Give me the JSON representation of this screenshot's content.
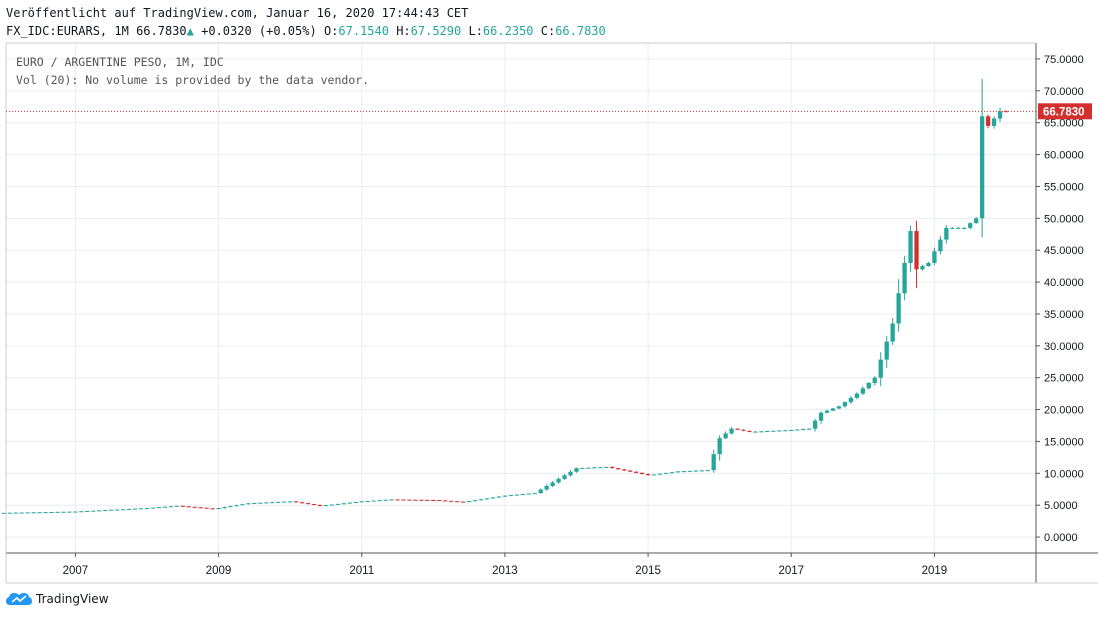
{
  "header": {
    "published": "Veröffentlicht auf TradingView.com, Januar 16, 2020 17:44:43 CET",
    "symbol": "FX_IDC:EURARS, 1M",
    "last": "66.7830",
    "change": "+0.0320 (+0.05%)",
    "o_label": "O:",
    "o_value": "67.1540",
    "h_label": "H:",
    "h_value": "67.5290",
    "l_label": "L:",
    "l_value": "66.2350",
    "c_label": "C:",
    "c_value": "66.7830"
  },
  "legend": {
    "title": "EURO / ARGENTINE PESO, 1M, IDC",
    "volume_note": "Vol (20): No volume is provided by the data vendor."
  },
  "price_label": "66.7830",
  "brand": "TradingView",
  "colors": {
    "up": "#26a69a",
    "down": "#d32f2f",
    "grid": "#e9edf2",
    "price_line": "#d32f2f"
  },
  "chart_data": {
    "type": "candlestick",
    "symbol": "EURARS",
    "interval": "1M",
    "y_ticks": [
      "0.0000",
      "5.0000",
      "10.0000",
      "15.0000",
      "20.0000",
      "25.0000",
      "30.0000",
      "35.0000",
      "40.0000",
      "45.0000",
      "50.0000",
      "55.0000",
      "60.0000",
      "65.0000",
      "70.0000",
      "75.0000"
    ],
    "x_ticks": [
      "2007",
      "2009",
      "2011",
      "2013",
      "2015",
      "2017",
      "2019"
    ],
    "ylim": [
      -2.5,
      77.5
    ],
    "last_price": 66.783,
    "anchors": [
      [
        "2006-01",
        3.8
      ],
      [
        "2007-01",
        4.0
      ],
      [
        "2008-01",
        4.55
      ],
      [
        "2008-06",
        4.9
      ],
      [
        "2008-10",
        4.6
      ],
      [
        "2008-12",
        4.4
      ],
      [
        "2009-06",
        5.3
      ],
      [
        "2010-01",
        5.6
      ],
      [
        "2010-06",
        4.9
      ],
      [
        "2011-01",
        5.6
      ],
      [
        "2011-06",
        5.9
      ],
      [
        "2012-01",
        5.8
      ],
      [
        "2012-06",
        5.5
      ],
      [
        "2013-01",
        6.5
      ],
      [
        "2013-06",
        6.9
      ],
      [
        "2014-01",
        10.8
      ],
      [
        "2014-06",
        11.0
      ],
      [
        "2015-01",
        9.7
      ],
      [
        "2015-06",
        10.3
      ],
      [
        "2015-11",
        10.5
      ],
      [
        "2016-01",
        15.5
      ],
      [
        "2016-03",
        17.0
      ],
      [
        "2016-06",
        16.5
      ],
      [
        "2017-01",
        16.8
      ],
      [
        "2017-04",
        17.0
      ],
      [
        "2017-06",
        19.5
      ],
      [
        "2017-09",
        20.5
      ],
      [
        "2017-12",
        22.5
      ],
      [
        "2018-03",
        25.0
      ],
      [
        "2018-06",
        33.5
      ],
      [
        "2018-08",
        43.0
      ],
      [
        "2018-09",
        48.0
      ],
      [
        "2018-10",
        42.0
      ],
      [
        "2018-12",
        43.0
      ],
      [
        "2019-03",
        48.5
      ],
      [
        "2019-06",
        48.5
      ],
      [
        "2019-08",
        50.0
      ],
      [
        "2019-09",
        66.0
      ],
      [
        "2019-10",
        64.5
      ],
      [
        "2019-12",
        66.8
      ],
      [
        "2020-01",
        66.783
      ]
    ]
  }
}
